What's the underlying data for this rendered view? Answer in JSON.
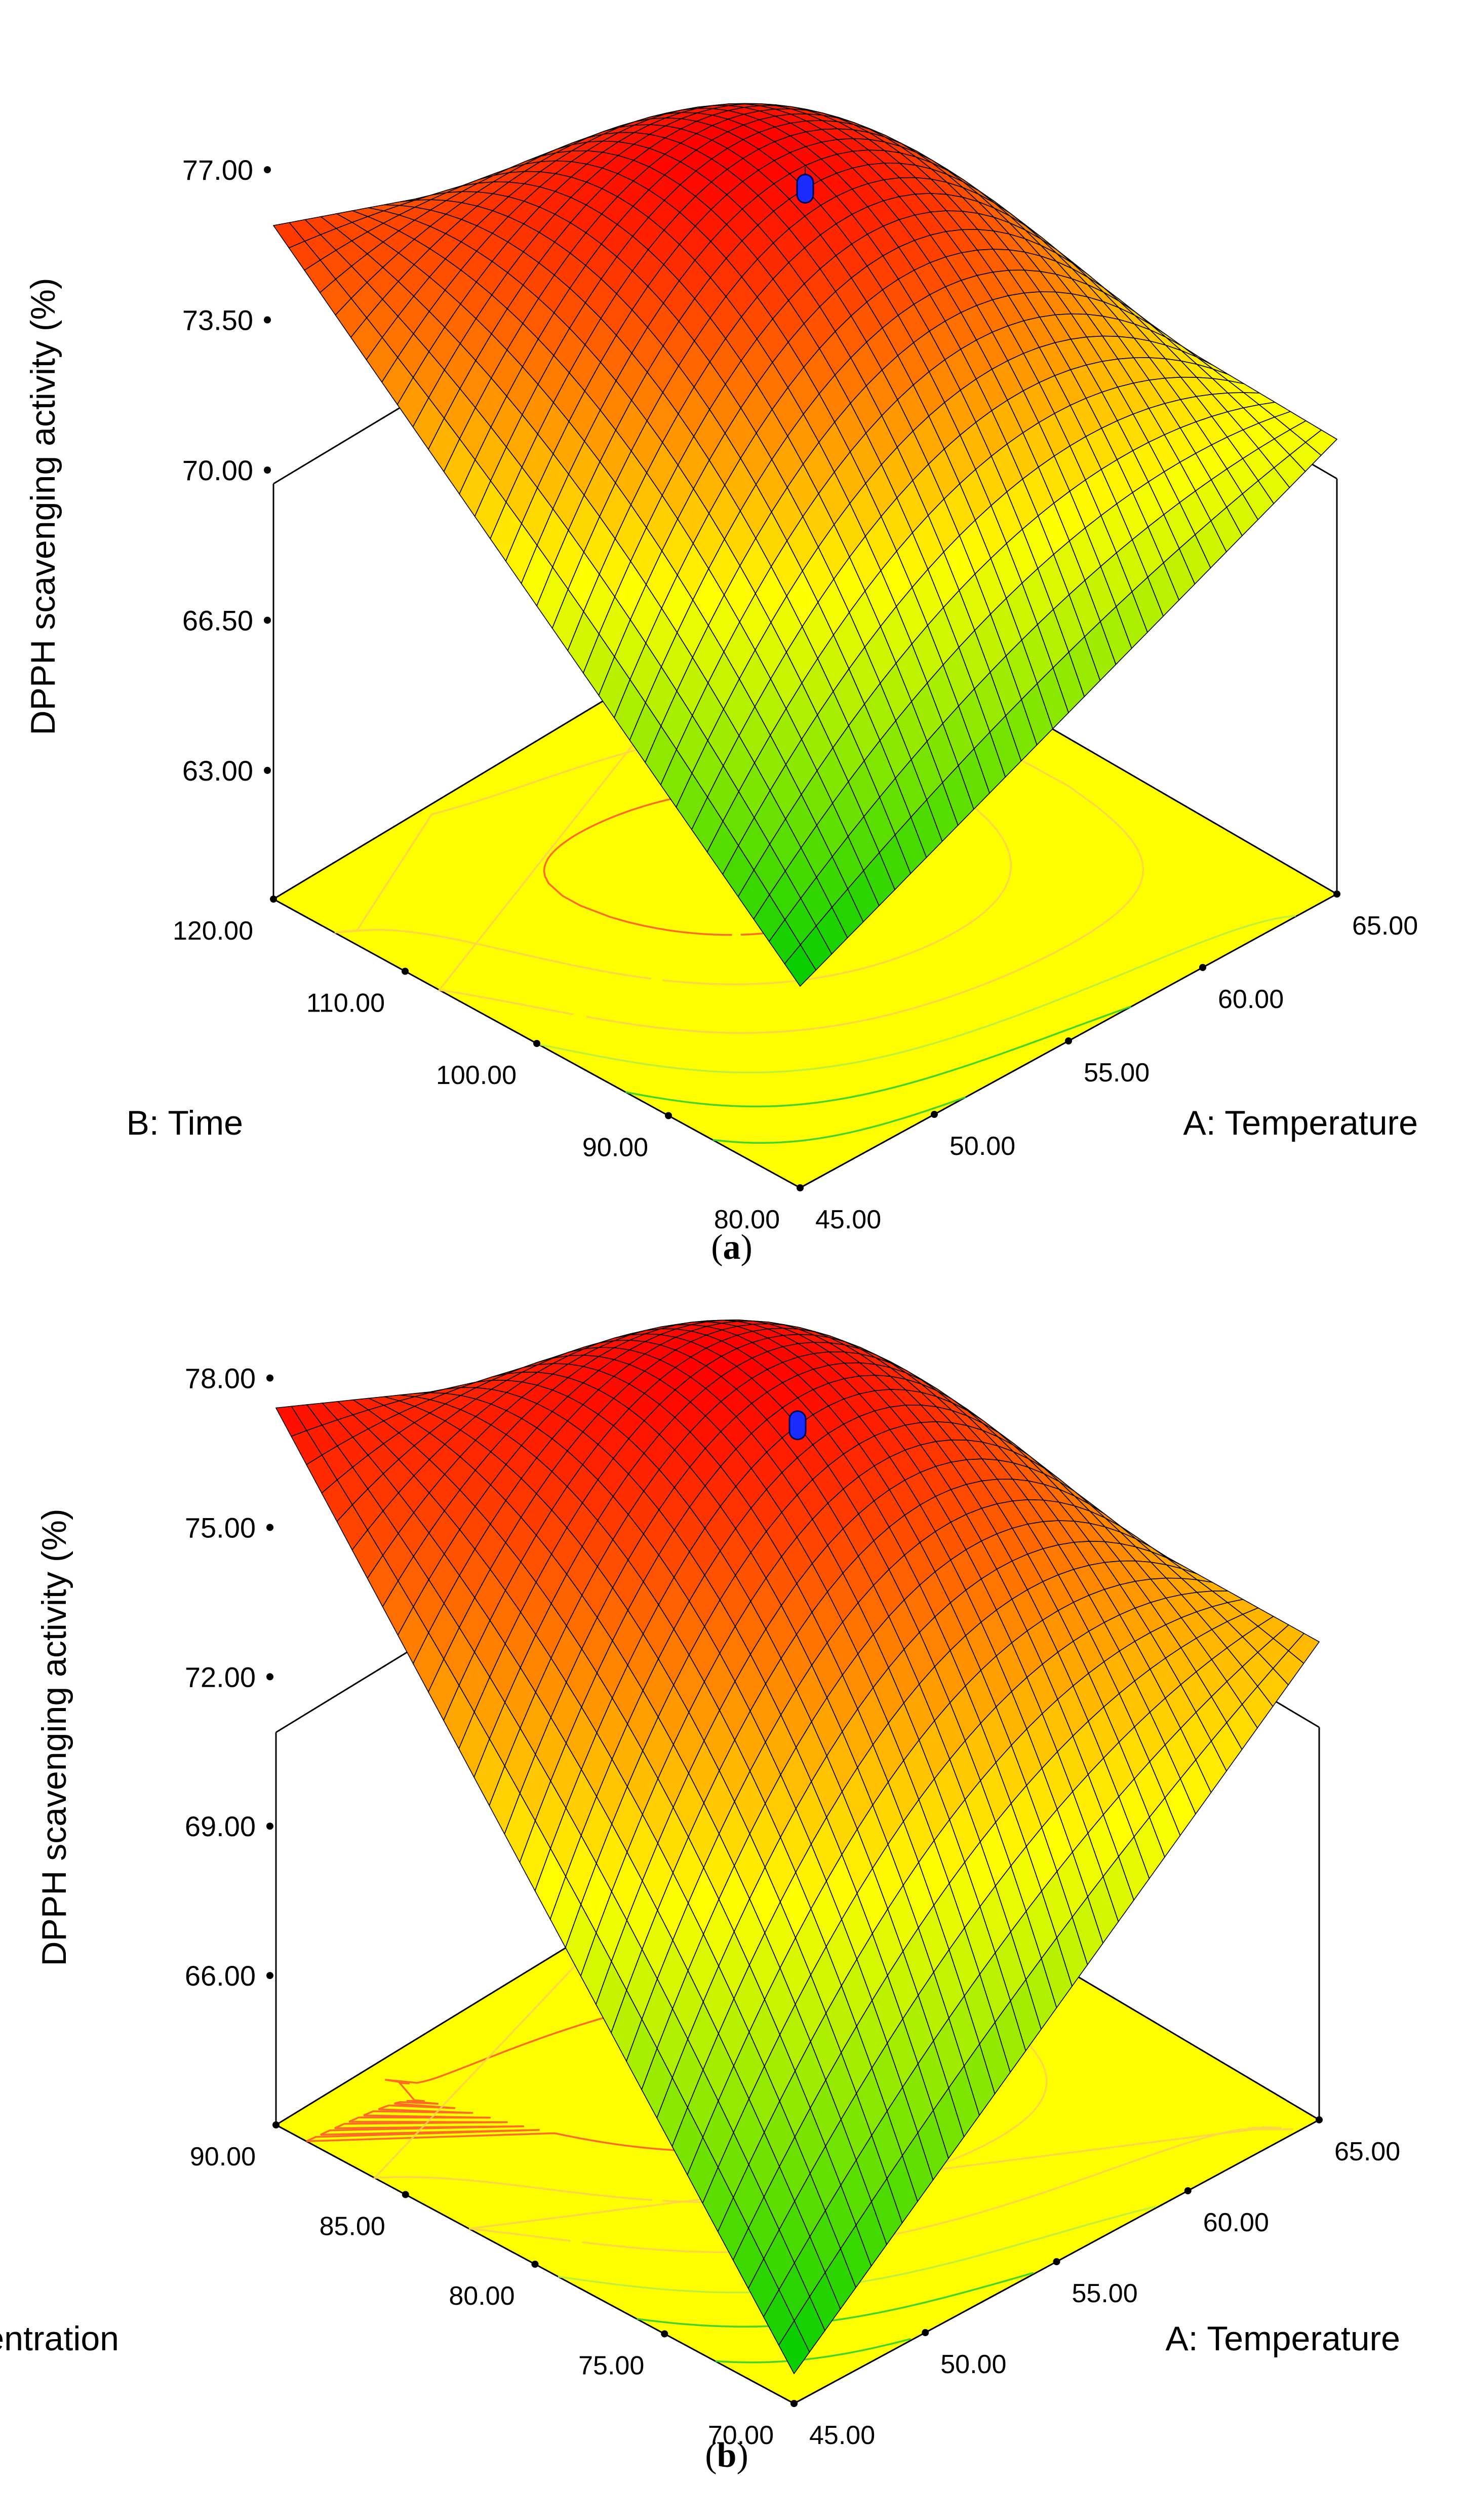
{
  "figure": {
    "panels": [
      {
        "caption": "(a)",
        "caption_letter": "a",
        "chart_data": {
          "type": "surface3d",
          "zlabel": "DPPH scavenging activity (%)",
          "z_ticks": [
            "63.00",
            "66.50",
            "70.00",
            "73.50",
            "77.00"
          ],
          "z_range": [
            60.0,
            77.0
          ],
          "x": {
            "label": "A: Temperature",
            "ticks": [
              "45.00",
              "50.00",
              "55.00",
              "60.00",
              "65.00"
            ],
            "range": [
              45,
              65
            ]
          },
          "y": {
            "label": "B: Time",
            "ticks": [
              "80.00",
              "90.00",
              "100.00",
              "110.00",
              "120.00"
            ],
            "range": [
              80,
              120
            ]
          },
          "surface_corners": {
            "A45_B80": 64.7,
            "A65_B80": 70.6,
            "A45_B120": 75.7,
            "A65_B120": 71.2
          },
          "optimum": {
            "A": 55,
            "B": 100,
            "z": 76.5
          },
          "color_scale": [
            "#00cc00",
            "#ffff00",
            "#ff0000"
          ]
        }
      },
      {
        "caption": "(b)",
        "caption_letter": "b",
        "chart_data": {
          "type": "surface3d",
          "zlabel": "DPPH scavenging activity (%)",
          "z_ticks": [
            "66.00",
            "69.00",
            "72.00",
            "75.00",
            "78.00"
          ],
          "z_range": [
            63.0,
            78.0
          ],
          "x": {
            "label": "A: Temperature",
            "ticks": [
              "45.00",
              "50.00",
              "55.00",
              "60.00",
              "65.00"
            ],
            "range": [
              45,
              65
            ]
          },
          "y": {
            "label": "C: Ethanol Concentration",
            "ticks": [
              "70.00",
              "75.00",
              "80.00",
              "85.00",
              "90.00"
            ],
            "range": [
              70,
              90
            ]
          },
          "surface_corners": {
            "A45_C70": 63.6,
            "A65_C70": 72.6,
            "A45_C90": 77.4,
            "A65_C90": 72.8
          },
          "optimum": {
            "A": 55,
            "C": 80,
            "z": 77.0
          },
          "color_scale": [
            "#00cc00",
            "#ffff00",
            "#ff0000"
          ]
        }
      }
    ]
  }
}
